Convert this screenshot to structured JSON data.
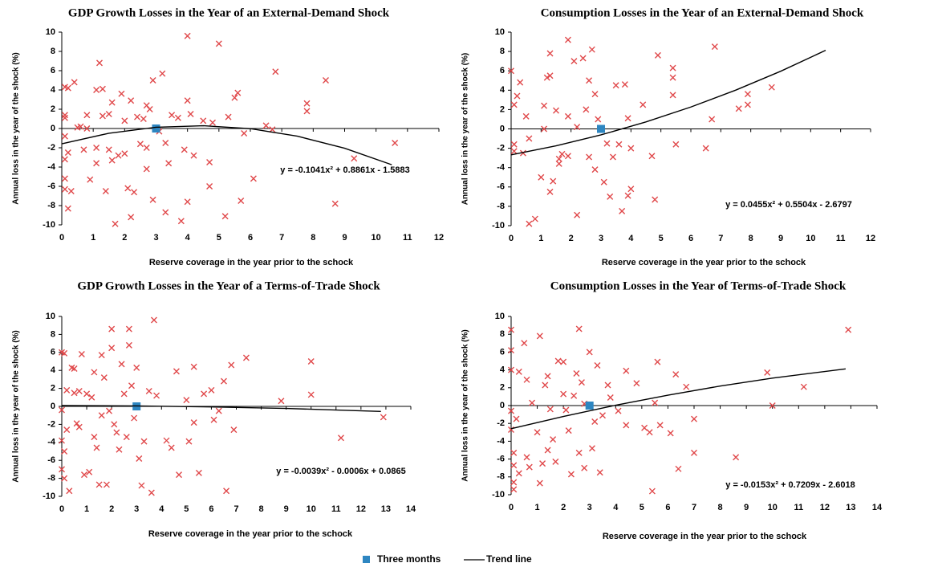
{
  "chart_data": [
    {
      "type": "scatter",
      "title": "GDP Growth Losses in the Year of an External-Demand Shock",
      "xlabel": "Reserve coverage in the year prior to the schock",
      "ylabel": "Annual loss in the year of the shock (%)",
      "equation": "y = -0.1041x² + 0.8861x - 1.5883",
      "xlim": [
        0,
        12
      ],
      "ylim": [
        -10,
        10
      ],
      "xticks": [
        0,
        1,
        2,
        3,
        4,
        5,
        6,
        7,
        8,
        9,
        10,
        11,
        12
      ],
      "yticks": [
        -10,
        -8,
        -6,
        -4,
        -2,
        0,
        2,
        4,
        6,
        8,
        10
      ],
      "series": [
        {
          "color": "#e0484a",
          "x": [
            0.1,
            0.2,
            0.4,
            0.1,
            0.1,
            0.1,
            0.2,
            0.1,
            0.1,
            0.1,
            0.2,
            0.3,
            0.5,
            0.6,
            0.8,
            0.7,
            0.9,
            0.8,
            1.1,
            1.1,
            1.1,
            1.2,
            1.3,
            1.3,
            1.4,
            1.5,
            1.5,
            1.6,
            1.6,
            1.7,
            1.8,
            1.9,
            2,
            2,
            2.1,
            2.2,
            2.2,
            2.3,
            2.4,
            2.5,
            2.6,
            2.7,
            2.7,
            2.7,
            2.8,
            2.9,
            2.9,
            3.1,
            3.2,
            3.3,
            3.3,
            3.4,
            3.5,
            3.7,
            3.8,
            3.9,
            4,
            4,
            4,
            4.1,
            4.2,
            4.5,
            4.7,
            4.7,
            4.8,
            5,
            5.2,
            5.3,
            5.5,
            5.6,
            5.7,
            5.8,
            6.1,
            6.5,
            6.8,
            6.7,
            7.8,
            7.8,
            8.4,
            8.7,
            9.3,
            10.6
          ],
          "values": [
            4.3,
            4.2,
            4.8,
            1.4,
            1.1,
            -0.8,
            -2.5,
            -3.2,
            -5.2,
            -6.3,
            -8.3,
            -6.5,
            0.1,
            0.2,
            0,
            -2.2,
            -5.3,
            1.4,
            4,
            -2,
            -3.6,
            6.8,
            4.1,
            1.3,
            -6.5,
            1.5,
            -2.2,
            2.7,
            -3.3,
            -9.9,
            -2.8,
            3.6,
            0.8,
            -2.6,
            -6.2,
            2.9,
            -9.2,
            -6.6,
            1.2,
            -1.6,
            1,
            2.4,
            -2,
            -4.2,
            2,
            5,
            -7.4,
            -0.3,
            5.7,
            -1.5,
            -8.7,
            -3.6,
            1.4,
            1.1,
            -9.6,
            -2.2,
            9.6,
            2.9,
            -7.6,
            1.5,
            -2.8,
            0.8,
            -3.5,
            -6,
            0.6,
            8.8,
            -9.1,
            1.2,
            3.2,
            3.7,
            -7.5,
            -0.5,
            -5.2,
            0.3,
            5.9,
            -0.1,
            2.6,
            1.8,
            5,
            -7.8,
            -3.1,
            -1.5
          ]
        },
        {
          "name": "Three months",
          "color": "#2e86c1",
          "x": [
            3
          ],
          "values": [
            0
          ]
        },
        {
          "name": "Trend line",
          "color": "#000000",
          "x": [
            0,
            1.5,
            3,
            4.5,
            6,
            7.5,
            9,
            10.5
          ],
          "values": [
            -1.59,
            -0.49,
            0.13,
            0.29,
            -0.02,
            -0.8,
            -2.05,
            -3.76
          ]
        }
      ]
    },
    {
      "type": "scatter",
      "title": "Consumption Losses in the Year of an External-Demand Shock",
      "xlabel": "Reserve coverage in the year prior to the schock",
      "ylabel": "Annual loss in the year of the shock (%)",
      "equation": "y = 0.0455x² + 0.5504x - 2.6797",
      "xlim": [
        0,
        12
      ],
      "ylim": [
        -10,
        10
      ],
      "xticks": [
        0,
        1,
        2,
        3,
        4,
        5,
        6,
        7,
        8,
        9,
        10,
        11,
        12
      ],
      "yticks": [
        -10,
        -8,
        -6,
        -4,
        -2,
        0,
        2,
        4,
        6,
        8,
        10
      ],
      "series": [
        {
          "color": "#e0484a",
          "x": [
            0,
            0.1,
            0.2,
            0.1,
            0.1,
            0.3,
            0.4,
            0.5,
            0.6,
            0.6,
            0.8,
            1,
            1.1,
            1.1,
            1.2,
            1.3,
            1.3,
            1.3,
            1.4,
            1.5,
            1.6,
            1.6,
            1.7,
            1.9,
            1.9,
            1.9,
            2.1,
            2.2,
            2.2,
            2.4,
            2.5,
            2.6,
            2.6,
            2.7,
            2.8,
            2.8,
            2.9,
            3.1,
            3.2,
            3.3,
            3.4,
            3.5,
            3.6,
            3.7,
            3.8,
            3.9,
            3.9,
            4,
            4,
            4.4,
            4.7,
            4.8,
            4.9,
            5.4,
            5.4,
            5.4,
            5.5,
            6.5,
            6.7,
            6.8,
            7.6,
            7.9,
            7.9,
            8.7
          ],
          "values": [
            6,
            2.5,
            3.4,
            -1.6,
            -2.3,
            4.8,
            -2.5,
            1.3,
            -1,
            -9.8,
            -9.3,
            -5,
            2.4,
            0,
            5.3,
            5.5,
            7.8,
            -6.5,
            -5.4,
            1.9,
            -3.1,
            -3.6,
            -2.6,
            9.2,
            1.3,
            -2.8,
            7,
            0.2,
            -8.9,
            7.3,
            2,
            5,
            -2.9,
            8.2,
            3.6,
            -4.2,
            1,
            -5.5,
            -1.5,
            -7,
            -2.9,
            4.5,
            -1.6,
            -8.5,
            4.6,
            1.1,
            -6.9,
            -2,
            -6.2,
            2.5,
            -2.8,
            -7.3,
            7.6,
            6.3,
            5.3,
            3.5,
            -1.6,
            -2,
            1,
            8.5,
            2.1,
            3.6,
            2.5,
            4.3
          ]
        },
        {
          "color": "#2e86c1",
          "x": [
            3
          ],
          "values": [
            0
          ]
        },
        {
          "color": "#000000",
          "x": [
            0,
            1.5,
            3,
            4.5,
            6,
            7.5,
            9,
            10.5
          ],
          "values": [
            -2.68,
            -1.75,
            -0.62,
            0.72,
            2.26,
            4.01,
            5.96,
            8.12
          ]
        }
      ]
    },
    {
      "type": "scatter",
      "title": "GDP Growth Losses in the Year of a Terms-of-Trade Shock",
      "xlabel": "Reserve coverage in the year prior to the schock",
      "ylabel": "Annual loss in the year of the shock (%)",
      "equation": "y = -0.0039x² - 0.0006x + 0.0865",
      "xlim": [
        0,
        14
      ],
      "ylim": [
        -10,
        10
      ],
      "xticks": [
        0,
        1,
        2,
        3,
        4,
        5,
        6,
        7,
        8,
        9,
        10,
        11,
        12,
        13,
        14
      ],
      "yticks": [
        -10,
        -8,
        -6,
        -4,
        -2,
        0,
        2,
        4,
        6,
        8,
        10
      ],
      "series": [
        {
          "color": "#e0484a",
          "x": [
            0,
            0.1,
            0,
            0,
            0.1,
            0,
            0.1,
            0.2,
            0.2,
            0.3,
            0.4,
            0.5,
            0.5,
            0.6,
            0.7,
            0.7,
            0.8,
            0.9,
            1,
            1.1,
            1.2,
            1.3,
            1.3,
            1.4,
            1.5,
            1.6,
            1.6,
            1.7,
            1.8,
            1.9,
            2,
            2,
            2.1,
            2.2,
            2.3,
            2.4,
            2.5,
            2.6,
            2.7,
            2.7,
            2.8,
            2.9,
            3,
            3.1,
            3.2,
            3.3,
            3.5,
            3.6,
            3.7,
            3.8,
            4.2,
            4.4,
            4.6,
            4.7,
            5,
            5.1,
            5.3,
            5.3,
            5.5,
            5.7,
            6,
            6.1,
            6.3,
            6.5,
            6.6,
            6.8,
            6.9,
            7.4,
            8.8,
            10,
            10,
            11.2,
            12.9
          ],
          "values": [
            6,
            5.9,
            -0.4,
            -3.8,
            -5,
            -7,
            -8,
            1.8,
            -2.6,
            -9.4,
            4.3,
            4.2,
            1.5,
            -1.9,
            1.7,
            -2.3,
            5.8,
            -7.6,
            1.4,
            -7.3,
            1,
            3.8,
            -3.4,
            -4.6,
            -8.7,
            5.7,
            -1,
            3.2,
            -8.7,
            -0.5,
            8.6,
            6.5,
            -2,
            -2.9,
            -4.8,
            4.7,
            1.4,
            -3.4,
            8.6,
            6.8,
            2.3,
            -1.3,
            4.3,
            -5.8,
            -8.8,
            -3.9,
            1.7,
            -9.6,
            9.6,
            1.2,
            -3.8,
            -4.6,
            3.9,
            -7.6,
            0.7,
            -3.9,
            4.4,
            -1.8,
            -7.4,
            1.4,
            1.8,
            -1.5,
            -0.5,
            2.8,
            -9.4,
            4.6,
            -2.6,
            5.4,
            0.6,
            5,
            1.3,
            -3.5,
            -1.2
          ]
        },
        {
          "color": "#2e86c1",
          "x": [
            3
          ],
          "values": [
            0
          ]
        },
        {
          "color": "#000000",
          "x": [
            0,
            3,
            6,
            9,
            12.8
          ],
          "values": [
            0.09,
            0.05,
            -0.06,
            -0.23,
            -0.56
          ]
        }
      ]
    },
    {
      "type": "scatter",
      "title": "Consumption Losses in the Year of Terms-of-Trade Shock",
      "xlabel": "Reserve coverage in the year prior to the schock",
      "ylabel": "Annual loss in the year of the shock (%)",
      "equation": "y = -0.0153x² + 0.7209x - 2.6018",
      "xlim": [
        0,
        14
      ],
      "ylim": [
        -10,
        10
      ],
      "xticks": [
        0,
        1,
        2,
        3,
        4,
        5,
        6,
        7,
        8,
        9,
        10,
        11,
        12,
        13,
        14
      ],
      "yticks": [
        -10,
        -8,
        -6,
        -4,
        -2,
        0,
        2,
        4,
        6,
        8,
        10
      ],
      "series": [
        {
          "color": "#e0484a",
          "x": [
            0,
            0,
            0,
            0,
            0,
            0.1,
            0.1,
            0.1,
            0.1,
            0.2,
            0.3,
            0.3,
            0.5,
            0.6,
            0.6,
            0.7,
            0.8,
            1,
            1.1,
            1.1,
            1.2,
            1.3,
            1.4,
            1.4,
            1.5,
            1.6,
            1.7,
            1.8,
            2,
            2,
            2.1,
            2.2,
            2.3,
            2.4,
            2.5,
            2.6,
            2.6,
            2.7,
            2.8,
            2.8,
            3,
            3.1,
            3.2,
            3.3,
            3.4,
            3.5,
            3.7,
            3.8,
            4.1,
            4.4,
            4.4,
            4.8,
            5.1,
            5.3,
            5.4,
            5.5,
            5.6,
            5.7,
            6.1,
            6.3,
            6.4,
            6.7,
            7,
            7,
            8.6,
            9.8,
            10,
            11.2,
            12.9
          ],
          "values": [
            8.5,
            6.2,
            4,
            -0.6,
            -2.7,
            -5.3,
            -6.7,
            -8.6,
            -9.4,
            -1.5,
            3.8,
            -7.6,
            7,
            2.9,
            -5.8,
            -6.9,
            0.3,
            -3,
            7.8,
            -8.7,
            -6.5,
            2.3,
            3.3,
            -5,
            -0.4,
            -3.8,
            -6.3,
            5,
            4.9,
            1.3,
            -0.5,
            -2.8,
            -7.7,
            1.1,
            3.6,
            8.6,
            -5.3,
            2.6,
            0.2,
            -7,
            6,
            -4.8,
            -1.8,
            4.5,
            -7.5,
            -1.1,
            2.3,
            0.9,
            -0.6,
            3.9,
            -2.2,
            2.5,
            -2.5,
            -3,
            -9.6,
            0.3,
            4.9,
            -2.2,
            -3.1,
            3.5,
            -7.1,
            2.1,
            -5.3,
            -1.5,
            -5.8,
            3.7,
            0,
            2.1,
            8.5
          ]
        },
        {
          "color": "#2e86c1",
          "x": [
            3
          ],
          "values": [
            0
          ]
        },
        {
          "color": "#000000",
          "x": [
            0,
            2,
            4,
            6,
            8,
            10,
            12.8
          ],
          "values": [
            -2.6,
            -1.22,
            0.04,
            1.17,
            2.19,
            3.08,
            4.12
          ]
        }
      ]
    }
  ]
}
